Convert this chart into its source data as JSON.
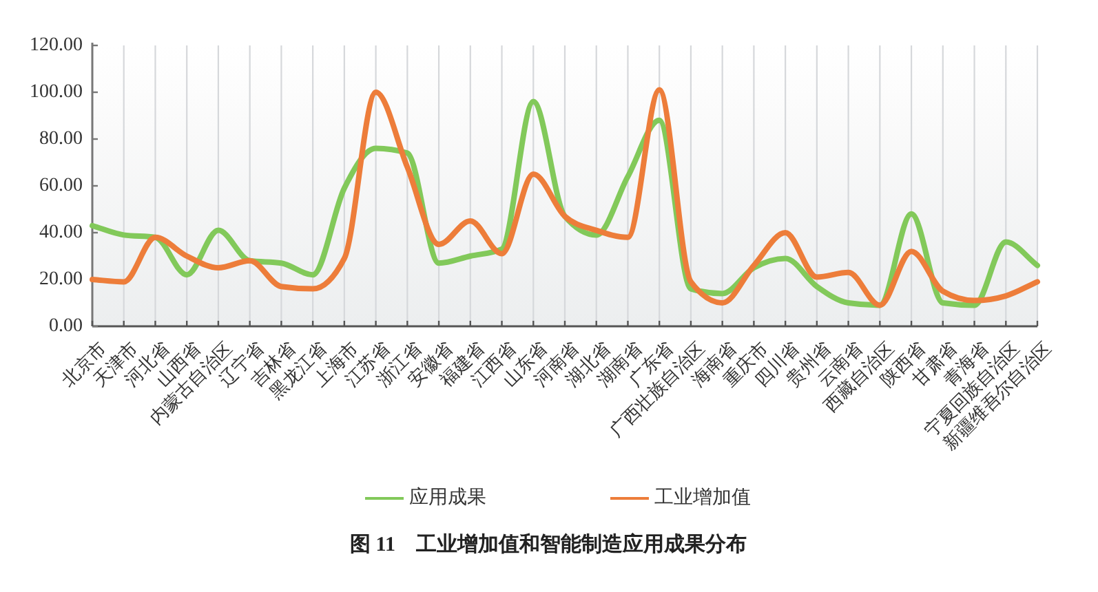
{
  "chart_data": {
    "type": "line",
    "title": "图 11　工业增加值和智能制造应用成果分布",
    "categories": [
      "北京市",
      "天津市",
      "河北省",
      "山西省",
      "内蒙古自治区",
      "辽宁省",
      "吉林省",
      "黑龙江省",
      "上海市",
      "江苏省",
      "浙江省",
      "安徽省",
      "福建省",
      "江西省",
      "山东省",
      "河南省",
      "湖北省",
      "湖南省",
      "广东省",
      "广西壮族自治区",
      "海南省",
      "重庆市",
      "四川省",
      "贵州省",
      "云南省",
      "西藏自治区",
      "陕西省",
      "甘肃省",
      "青海省",
      "宁夏回族自治区",
      "新疆维吾尔自治区"
    ],
    "series": [
      {
        "name": "应用成果",
        "color": "#82c95a",
        "values": [
          43,
          39,
          38,
          22,
          41,
          28,
          27,
          22,
          59,
          76,
          74,
          27,
          30,
          33,
          96,
          47,
          39,
          64,
          88,
          16,
          14,
          25,
          29,
          17,
          10,
          9,
          48,
          10,
          9,
          36,
          26
        ]
      },
      {
        "name": "工业增加值",
        "color": "#ed7d3a",
        "values": [
          20,
          19,
          38,
          30,
          25,
          28,
          17,
          16,
          29,
          100,
          68,
          35,
          45,
          31,
          65,
          47,
          41,
          38,
          101,
          19,
          10,
          26,
          40,
          21,
          23,
          9,
          32,
          15,
          11,
          13,
          19
        ]
      }
    ],
    "ylim": [
      0,
      120
    ],
    "yticks": [
      {
        "value": 0,
        "label": "0.00"
      },
      {
        "value": 20,
        "label": "20.00"
      },
      {
        "value": 40,
        "label": "40.00"
      },
      {
        "value": 60,
        "label": "60.00"
      },
      {
        "value": 80,
        "label": "80.00"
      },
      {
        "value": 100,
        "label": "100.00"
      },
      {
        "value": 120,
        "label": "120.00"
      }
    ],
    "grid": "x",
    "legend": "bottom",
    "line_style": "solid"
  }
}
